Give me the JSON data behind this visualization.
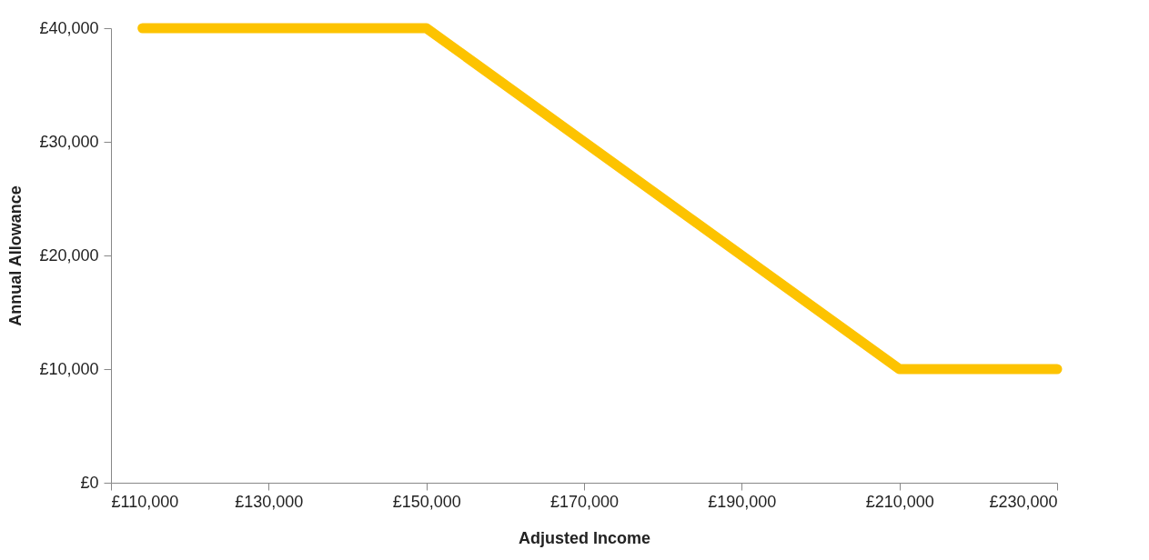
{
  "chart_data": {
    "type": "line",
    "xlabel": "Adjusted Income",
    "ylabel": "Annual Allowance",
    "x": [
      114000,
      150000,
      210000,
      230000
    ],
    "series": [
      {
        "color": "#fdc300",
        "values": [
          40000,
          40000,
          10000,
          10000
        ]
      }
    ],
    "xlim": [
      110000,
      230000
    ],
    "xticks": [
      {
        "value": 110000,
        "label": "£110,000"
      },
      {
        "value": 130000,
        "label": "£130,000"
      },
      {
        "value": 150000,
        "label": "£150,000"
      },
      {
        "value": 170000,
        "label": "£170,000"
      },
      {
        "value": 190000,
        "label": "£190,000"
      },
      {
        "value": 210000,
        "label": "£210,000"
      },
      {
        "value": 230000,
        "label": "£230,000"
      }
    ],
    "ylim": [
      0,
      40000
    ],
    "yticks": [
      {
        "value": 0,
        "label": "£0"
      },
      {
        "value": 10000,
        "label": "£10,000"
      },
      {
        "value": 20000,
        "label": "£20,000"
      },
      {
        "value": 30000,
        "label": "£30,000"
      },
      {
        "value": 40000,
        "label": "£40,000"
      }
    ],
    "grid": false,
    "legend": false,
    "marker": "none",
    "line_style": "solid"
  }
}
